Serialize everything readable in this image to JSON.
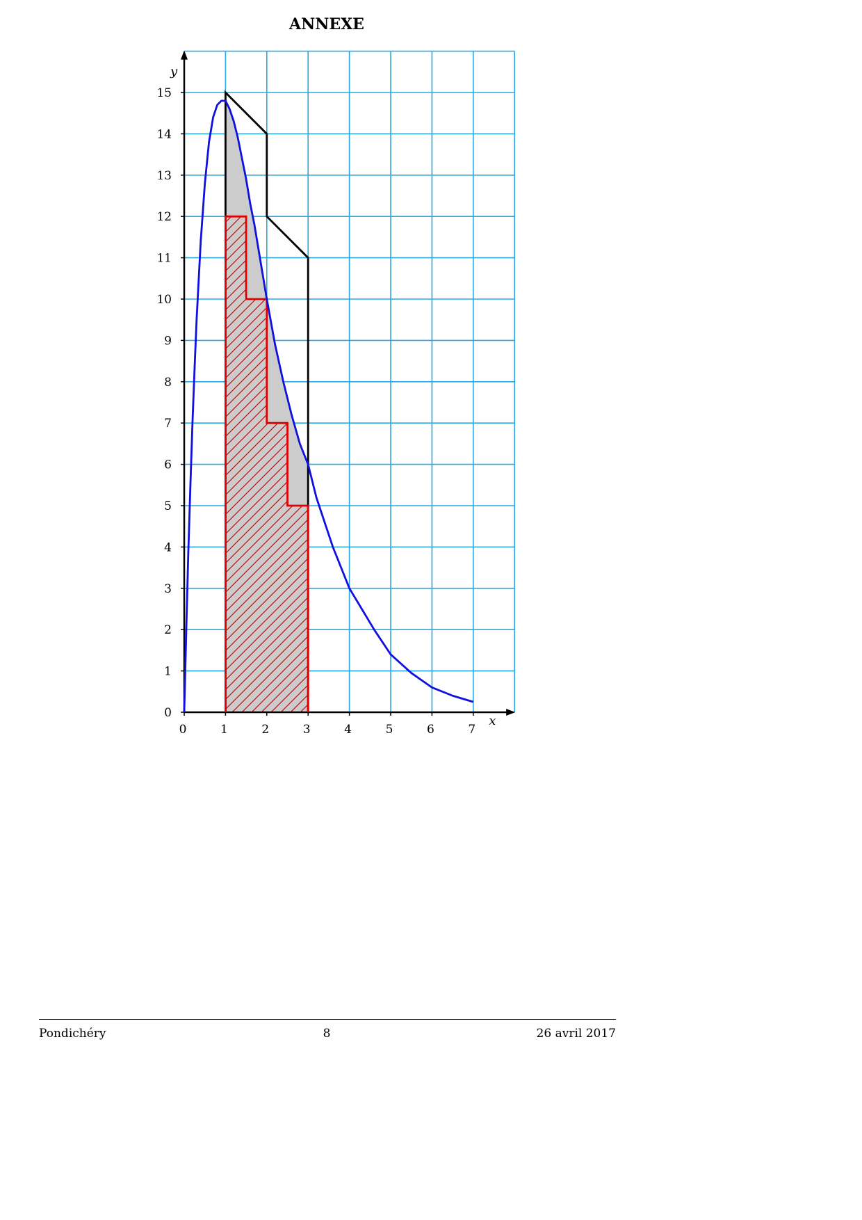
{
  "page": {
    "title": "ANNEXE",
    "footer": {
      "left": "Pondichéry",
      "center": "8",
      "right": "26 avril 2017"
    }
  },
  "chart_data": {
    "type": "line",
    "title": "",
    "xlabel": "x",
    "ylabel": "y",
    "xlim": [
      0,
      8
    ],
    "ylim": [
      0,
      16
    ],
    "x_ticks": [
      0,
      1,
      2,
      3,
      4,
      5,
      6,
      7
    ],
    "y_ticks": [
      0,
      1,
      2,
      3,
      4,
      5,
      6,
      7,
      8,
      9,
      10,
      11,
      12,
      13,
      14,
      15
    ],
    "grid": true,
    "colors": {
      "grid": "#29a9e1",
      "curve": "#1010e0",
      "upper": "#000000",
      "lower": "#e00000",
      "fill": "#cccccc"
    },
    "series": [
      {
        "style": "curve",
        "x": [
          0,
          0.05,
          0.1,
          0.15,
          0.2,
          0.25,
          0.3,
          0.4,
          0.5,
          0.6,
          0.7,
          0.8,
          0.9,
          1.0,
          1.1,
          1.2,
          1.3,
          1.4,
          1.5,
          1.6,
          1.7,
          1.8,
          2.0,
          2.2,
          2.4,
          2.6,
          2.8,
          3.0,
          3.2,
          3.4,
          3.6,
          3.8,
          4.0,
          4.3,
          4.6,
          5.0,
          5.5,
          6.0,
          6.5,
          7.0
        ],
        "y": [
          0,
          2.0,
          3.9,
          5.5,
          7.0,
          8.3,
          9.5,
          11.4,
          12.8,
          13.8,
          14.4,
          14.7,
          14.8,
          14.8,
          14.6,
          14.3,
          13.9,
          13.4,
          12.9,
          12.3,
          11.8,
          11.2,
          10.0,
          8.9,
          8.0,
          7.2,
          6.5,
          6.0,
          5.2,
          4.6,
          4.0,
          3.5,
          3.0,
          2.5,
          2.0,
          1.4,
          0.95,
          0.6,
          0.4,
          0.25
        ]
      },
      {
        "style": "upper-polygon",
        "x": [
          1,
          1,
          2,
          2,
          3,
          3
        ],
        "y": [
          0,
          15,
          14,
          12,
          11,
          0
        ]
      },
      {
        "style": "lower-steps",
        "x": [
          1,
          1,
          1.5,
          1.5,
          2,
          2,
          2.5,
          2.5,
          3,
          3
        ],
        "y": [
          0,
          12,
          12,
          10,
          10,
          7,
          7,
          5,
          5,
          0
        ]
      }
    ],
    "shaded_region": {
      "x_from": 1,
      "x_to": 3,
      "under": "curve"
    }
  }
}
